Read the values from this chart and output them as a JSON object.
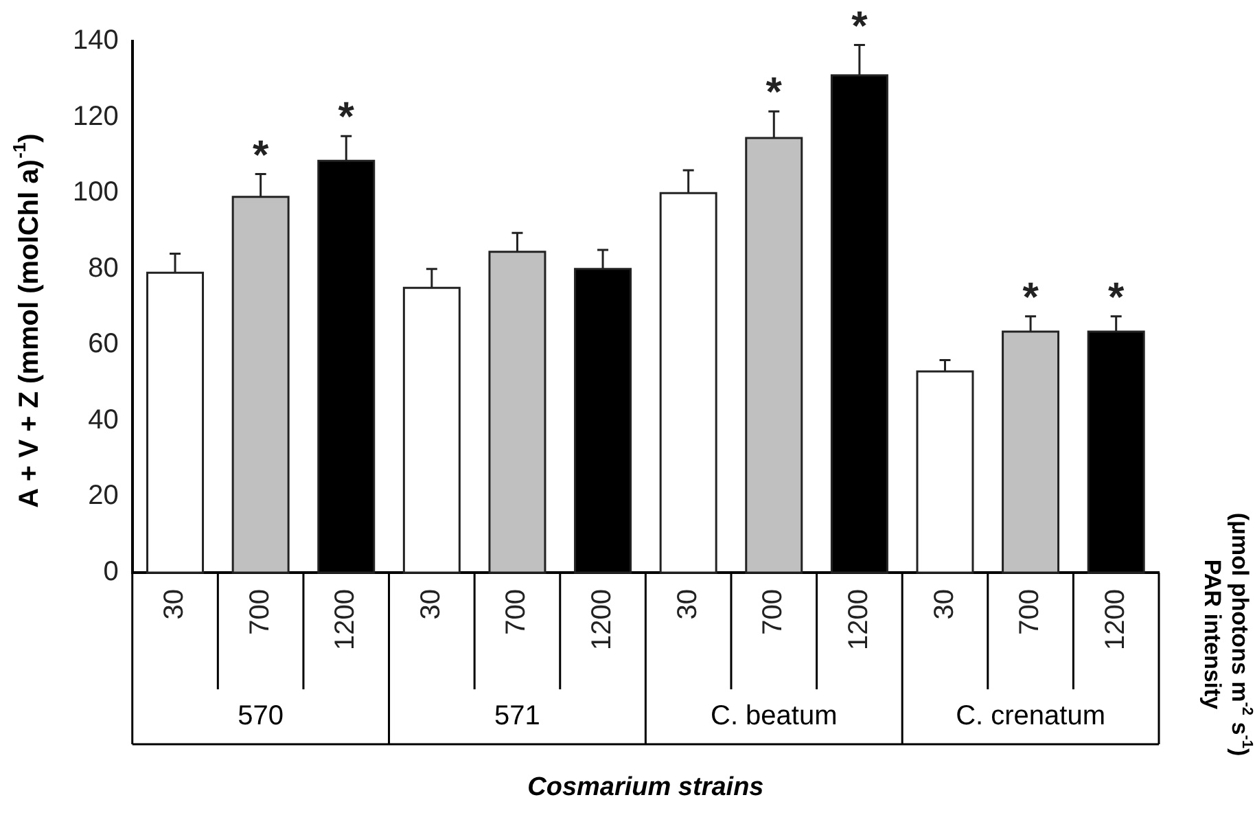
{
  "chart_data": {
    "type": "bar",
    "ylabel": "A + V + Z (mmol (molChl a)$^{-1}$)",
    "xlabel": "Cosmarium strains",
    "categories": [
      "30",
      "700",
      "1200",
      "30",
      "700",
      "1200",
      "30",
      "700",
      "1200",
      "30",
      "700",
      "1200"
    ],
    "values": [
      79,
      99,
      108.5,
      75,
      84.5,
      80,
      100,
      114.5,
      131,
      53,
      63.5,
      63.5
    ],
    "errors": [
      5,
      6,
      6.5,
      5,
      5,
      5,
      6,
      7,
      8,
      3,
      4,
      4
    ],
    "colors": [
      "#ffffff",
      "#c0c0c0",
      "#000000",
      "#ffffff",
      "#c0c0c0",
      "#000000",
      "#ffffff",
      "#c0c0c0",
      "#000000",
      "#ffffff",
      "#c0c0c0",
      "#000000"
    ],
    "value_labels": [
      null,
      "*",
      "*",
      null,
      null,
      null,
      null,
      "*",
      "*",
      null,
      "*",
      "*"
    ],
    "ylim": [
      0,
      140
    ],
    "yticks": [
      0,
      20,
      40,
      60,
      80,
      100,
      120,
      140
    ],
    "annotations": [
      "570",
      "571",
      "C. beatum",
      "C. crenatum",
      "PAR intensity (μmol photons m$^{-2}$ s$^{-1}$)"
    ],
    "grid": false,
    "legend": false
  }
}
